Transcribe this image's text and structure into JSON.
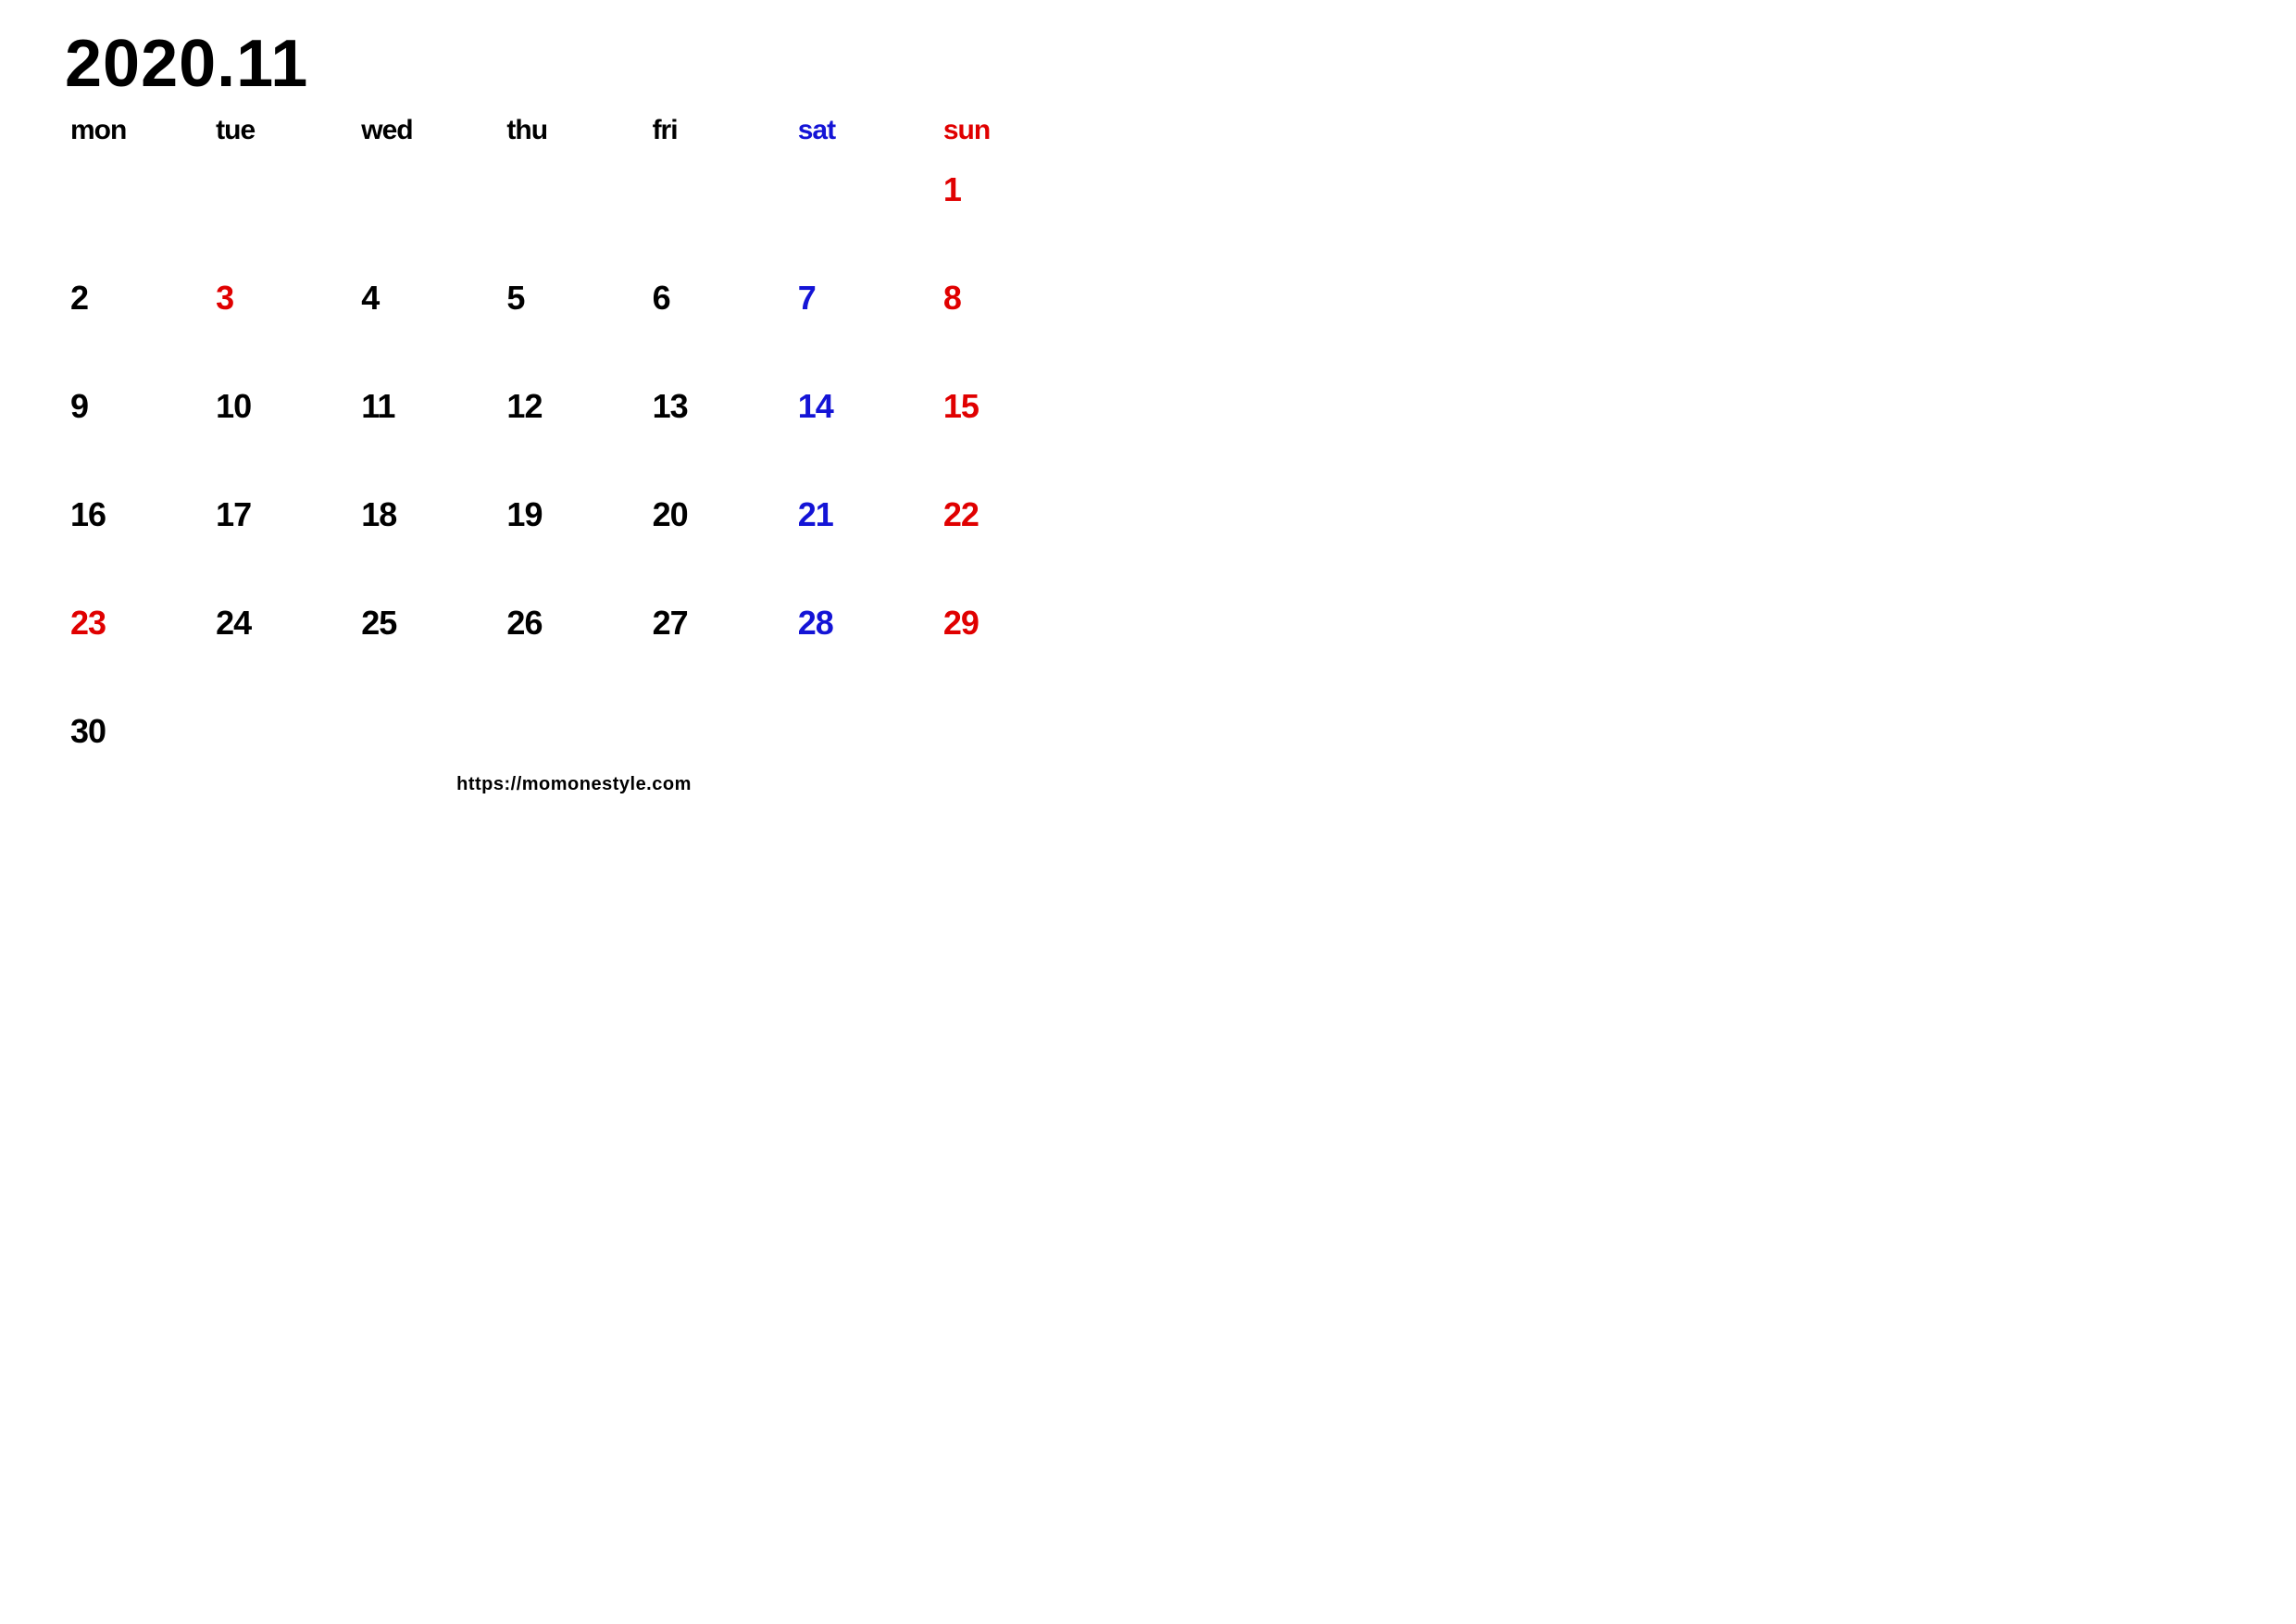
{
  "calendar": {
    "title": "2020.11",
    "footer_url": "https://momonestyle.com",
    "colors": {
      "weekday": "#000000",
      "saturday": "#1414d6",
      "sunday_holiday": "#e00000",
      "background": "#ffffff"
    },
    "font": {
      "family": "Arial Black",
      "title_size_pt": 54,
      "header_size_pt": 22,
      "day_size_pt": 27,
      "footer_size_pt": 15,
      "weight": 900
    },
    "headers": [
      {
        "label": "mon",
        "kind": "weekday"
      },
      {
        "label": "tue",
        "kind": "weekday"
      },
      {
        "label": "wed",
        "kind": "weekday"
      },
      {
        "label": "thu",
        "kind": "weekday"
      },
      {
        "label": "fri",
        "kind": "weekday"
      },
      {
        "label": "sat",
        "kind": "saturday"
      },
      {
        "label": "sun",
        "kind": "sunday"
      }
    ],
    "weeks": [
      [
        {
          "d": "",
          "kind": "weekday"
        },
        {
          "d": "",
          "kind": "weekday"
        },
        {
          "d": "",
          "kind": "weekday"
        },
        {
          "d": "",
          "kind": "weekday"
        },
        {
          "d": "",
          "kind": "weekday"
        },
        {
          "d": "",
          "kind": "saturday"
        },
        {
          "d": "1",
          "kind": "sunday"
        }
      ],
      [
        {
          "d": "2",
          "kind": "weekday"
        },
        {
          "d": "3",
          "kind": "holiday"
        },
        {
          "d": "4",
          "kind": "weekday"
        },
        {
          "d": "5",
          "kind": "weekday"
        },
        {
          "d": "6",
          "kind": "weekday"
        },
        {
          "d": "7",
          "kind": "saturday"
        },
        {
          "d": "8",
          "kind": "sunday"
        }
      ],
      [
        {
          "d": "9",
          "kind": "weekday"
        },
        {
          "d": "10",
          "kind": "weekday"
        },
        {
          "d": "11",
          "kind": "weekday"
        },
        {
          "d": "12",
          "kind": "weekday"
        },
        {
          "d": "13",
          "kind": "weekday"
        },
        {
          "d": "14",
          "kind": "saturday"
        },
        {
          "d": "15",
          "kind": "sunday"
        }
      ],
      [
        {
          "d": "16",
          "kind": "weekday"
        },
        {
          "d": "17",
          "kind": "weekday"
        },
        {
          "d": "18",
          "kind": "weekday"
        },
        {
          "d": "19",
          "kind": "weekday"
        },
        {
          "d": "20",
          "kind": "weekday"
        },
        {
          "d": "21",
          "kind": "saturday"
        },
        {
          "d": "22",
          "kind": "sunday"
        }
      ],
      [
        {
          "d": "23",
          "kind": "holiday"
        },
        {
          "d": "24",
          "kind": "weekday"
        },
        {
          "d": "25",
          "kind": "weekday"
        },
        {
          "d": "26",
          "kind": "weekday"
        },
        {
          "d": "27",
          "kind": "weekday"
        },
        {
          "d": "28",
          "kind": "saturday"
        },
        {
          "d": "29",
          "kind": "sunday"
        }
      ],
      [
        {
          "d": "30",
          "kind": "weekday"
        },
        {
          "d": "",
          "kind": "weekday"
        },
        {
          "d": "",
          "kind": "weekday"
        },
        {
          "d": "",
          "kind": "weekday"
        },
        {
          "d": "",
          "kind": "weekday"
        },
        {
          "d": "",
          "kind": "saturday"
        },
        {
          "d": "",
          "kind": "sunday"
        }
      ]
    ]
  }
}
